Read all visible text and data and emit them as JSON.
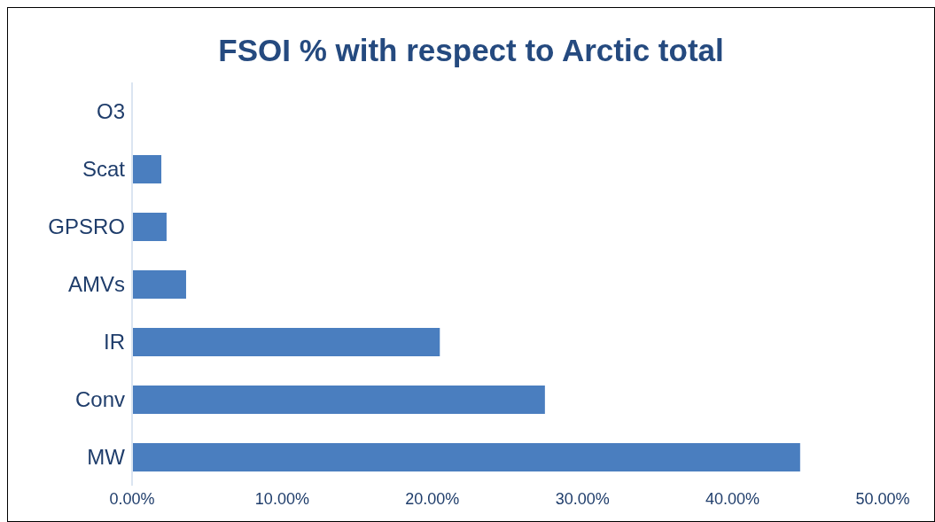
{
  "chart_data": {
    "type": "bar",
    "orientation": "horizontal",
    "title": "FSOI % with respect to Arctic total",
    "categories": [
      "O3",
      "Scat",
      "GPSRO",
      "AMVs",
      "IR",
      "Conv",
      "MW"
    ],
    "values": [
      0,
      1.95,
      2.3,
      3.6,
      20.5,
      27.5,
      44.5
    ],
    "color": "#4a7ebf",
    "xlim": [
      0,
      50
    ],
    "xticks": [
      {
        "value": 0,
        "label": "0.00%"
      },
      {
        "value": 10,
        "label": "10.00%"
      },
      {
        "value": 20,
        "label": "20.00%"
      },
      {
        "value": 30,
        "label": "30.00%"
      },
      {
        "value": 40,
        "label": "40.00%"
      },
      {
        "value": 50,
        "label": "50.00%"
      }
    ],
    "grid": false
  }
}
